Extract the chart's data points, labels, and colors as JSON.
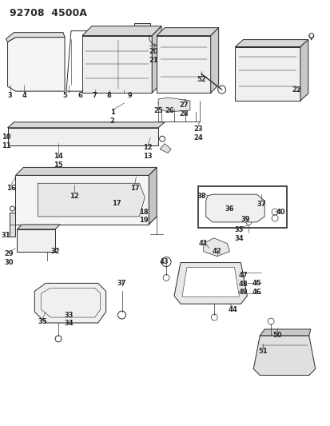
{
  "title": "92708  4500A",
  "bg_color": "#ffffff",
  "line_color": "#2a2a2a",
  "title_fontsize": 9,
  "label_fontsize": 6,
  "fig_width": 4.14,
  "fig_height": 5.33,
  "labels": [
    [
      "3",
      0.11,
      4.15
    ],
    [
      "4",
      0.29,
      4.15
    ],
    [
      "5",
      0.8,
      4.15
    ],
    [
      "6",
      1.0,
      4.15
    ],
    [
      "7",
      1.18,
      4.15
    ],
    [
      "8",
      1.36,
      4.15
    ],
    [
      "9",
      1.62,
      4.15
    ],
    [
      "1",
      1.4,
      3.93
    ],
    [
      "2",
      1.4,
      3.82
    ],
    [
      "10",
      0.06,
      3.62
    ],
    [
      "11",
      0.06,
      3.51
    ],
    [
      "14",
      0.72,
      3.38
    ],
    [
      "15",
      0.72,
      3.27
    ],
    [
      "12",
      1.85,
      3.49
    ],
    [
      "13",
      1.85,
      3.38
    ],
    [
      "20",
      1.92,
      4.7
    ],
    [
      "21",
      1.92,
      4.59
    ],
    [
      "52",
      2.52,
      4.35
    ],
    [
      "22",
      3.72,
      4.22
    ],
    [
      "25",
      1.98,
      3.95
    ],
    [
      "26",
      2.12,
      3.95
    ],
    [
      "27",
      2.3,
      4.02
    ],
    [
      "28",
      2.3,
      3.91
    ],
    [
      "23",
      2.48,
      3.72
    ],
    [
      "24",
      2.48,
      3.61
    ],
    [
      "16",
      0.12,
      2.98
    ],
    [
      "17",
      1.68,
      2.98
    ],
    [
      "12",
      0.92,
      2.88
    ],
    [
      "17",
      1.45,
      2.79
    ],
    [
      "18",
      1.8,
      2.68
    ],
    [
      "19",
      1.8,
      2.57
    ],
    [
      "31",
      0.06,
      2.38
    ],
    [
      "29",
      0.1,
      2.15
    ],
    [
      "30",
      0.1,
      2.04
    ],
    [
      "32",
      0.68,
      2.18
    ],
    [
      "37",
      1.52,
      1.78
    ],
    [
      "33",
      0.85,
      1.38
    ],
    [
      "34",
      0.85,
      1.27
    ],
    [
      "35",
      0.52,
      1.3
    ],
    [
      "38",
      2.52,
      2.88
    ],
    [
      "36",
      2.88,
      2.72
    ],
    [
      "37",
      3.28,
      2.78
    ],
    [
      "39",
      3.08,
      2.58
    ],
    [
      "40",
      3.52,
      2.68
    ],
    [
      "33",
      3.0,
      2.45
    ],
    [
      "34",
      3.0,
      2.34
    ],
    [
      "41",
      2.55,
      2.28
    ],
    [
      "42",
      2.72,
      2.18
    ],
    [
      "43",
      2.05,
      2.05
    ],
    [
      "47",
      3.05,
      1.88
    ],
    [
      "45",
      3.22,
      1.78
    ],
    [
      "46",
      3.22,
      1.67
    ],
    [
      "48",
      3.05,
      1.77
    ],
    [
      "49",
      3.05,
      1.67
    ],
    [
      "44",
      2.92,
      1.45
    ],
    [
      "50",
      3.48,
      1.12
    ],
    [
      "51",
      3.3,
      0.92
    ]
  ]
}
